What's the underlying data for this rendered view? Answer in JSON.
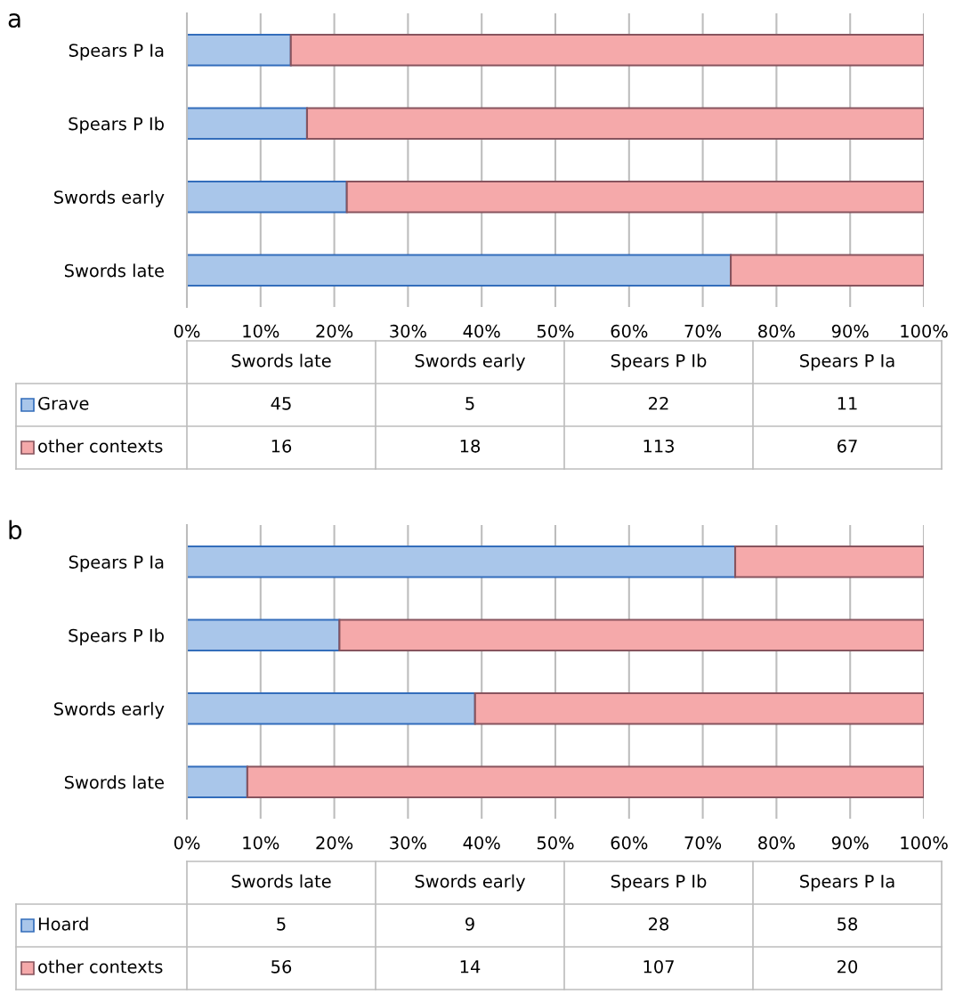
{
  "chart_data": [
    {
      "type": "bar",
      "title": "a",
      "orientation": "horizontal",
      "stacked": true,
      "categories": [
        "Spears P Ia",
        "Spears P Ib",
        "Swords early",
        "Swords late"
      ],
      "series": [
        {
          "color": "#a9c6ea",
          "values": [
            14.1,
            16.3,
            21.7,
            73.8
          ]
        },
        {
          "color": "#f5a9aa",
          "values": [
            85.9,
            83.7,
            78.3,
            26.2
          ]
        }
      ],
      "xlim": [
        0,
        100
      ],
      "xticks": [
        {
          "value": 0,
          "label": "0%"
        },
        {
          "value": 10,
          "label": "10%"
        },
        {
          "value": 20,
          "label": "20%"
        },
        {
          "value": 30,
          "label": "30%"
        },
        {
          "value": 40,
          "label": "40%"
        },
        {
          "value": 50,
          "label": "50%"
        },
        {
          "value": 60,
          "label": "60%"
        },
        {
          "value": 70,
          "label": "70%"
        },
        {
          "value": 80,
          "label": "80%"
        },
        {
          "value": 90,
          "label": "90%"
        },
        {
          "value": 100,
          "label": "100%"
        }
      ],
      "grid": "x"
    },
    {
      "type": "other",
      "categories": [
        "Swords late",
        "Swords early",
        "Spears P Ib",
        "Spears P Ia"
      ],
      "series": [
        {
          "name": "Grave",
          "color": "#a9c6ea",
          "values": [
            45,
            5,
            22,
            11
          ]
        },
        {
          "name": "other contexts",
          "color": "#f5a9aa",
          "values": [
            16,
            18,
            113,
            67
          ]
        }
      ],
      "data_labels": true,
      "legend": "left"
    },
    {
      "type": "bar",
      "title": "b",
      "orientation": "horizontal",
      "stacked": true,
      "categories": [
        "Spears P Ia",
        "Spears P Ib",
        "Swords early",
        "Swords late"
      ],
      "series": [
        {
          "color": "#a9c6ea",
          "values": [
            74.4,
            20.7,
            39.1,
            8.2
          ]
        },
        {
          "color": "#f5a9aa",
          "values": [
            25.6,
            79.3,
            60.9,
            91.8
          ]
        }
      ],
      "xlim": [
        0,
        100
      ],
      "xticks": [
        {
          "value": 0,
          "label": "0%"
        },
        {
          "value": 10,
          "label": "10%"
        },
        {
          "value": 20,
          "label": "20%"
        },
        {
          "value": 30,
          "label": "30%"
        },
        {
          "value": 40,
          "label": "40%"
        },
        {
          "value": 50,
          "label": "50%"
        },
        {
          "value": 60,
          "label": "60%"
        },
        {
          "value": 70,
          "label": "70%"
        },
        {
          "value": 80,
          "label": "80%"
        },
        {
          "value": 90,
          "label": "90%"
        },
        {
          "value": 100,
          "label": "100%"
        }
      ],
      "grid": "x"
    },
    {
      "type": "other",
      "categories": [
        "Swords late",
        "Swords early",
        "Spears P Ib",
        "Spears P Ia"
      ],
      "series": [
        {
          "name": "Hoard",
          "color": "#a9c6ea",
          "values": [
            5,
            9,
            28,
            58
          ]
        },
        {
          "name": "other contexts",
          "color": "#f5a9aa",
          "values": [
            56,
            14,
            107,
            20
          ]
        }
      ],
      "data_labels": true,
      "legend": "left"
    }
  ]
}
